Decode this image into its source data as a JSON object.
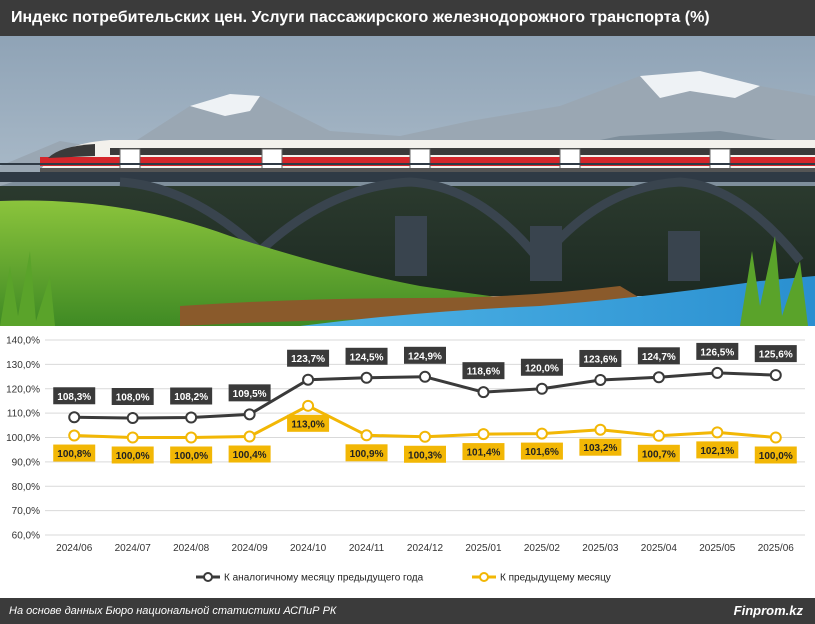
{
  "title": "Индекс потребительских цен. Услуги пассажирского железнодорожного транспорта (%)",
  "footer": {
    "source": "На основе данных Бюро национальной статистики АСПиР РК",
    "brand": "Finprom.kz"
  },
  "colors": {
    "header_bg": "#3b3b3b",
    "series_yoy": "#3a3a3a",
    "series_mom": "#f2b705",
    "grid": "#d9d9d9"
  },
  "chart_data": {
    "type": "line",
    "categories": [
      "2024/06",
      "2024/07",
      "2024/08",
      "2024/09",
      "2024/10",
      "2024/11",
      "2024/12",
      "2025/01",
      "2025/02",
      "2025/03",
      "2025/04",
      "2025/05",
      "2025/06"
    ],
    "ylim": [
      60,
      140
    ],
    "yticks": [
      "140,0%",
      "130,0%",
      "120,0%",
      "110,0%",
      "100,0%",
      "90,0%",
      "80,0%",
      "70,0%",
      "60,0%"
    ],
    "grid": true,
    "legend_position": "bottom",
    "series": [
      {
        "name": "К аналогичному месяцу предыдущего года",
        "values": [
          108.3,
          108.0,
          108.2,
          109.5,
          123.7,
          124.5,
          124.9,
          118.6,
          120.0,
          123.6,
          124.7,
          126.5,
          125.6
        ],
        "labels": [
          "108,3%",
          "108,0%",
          "108,2%",
          "109,5%",
          "123,7%",
          "124,5%",
          "124,9%",
          "118,6%",
          "120,0%",
          "123,6%",
          "124,7%",
          "126,5%",
          "125,6%"
        ]
      },
      {
        "name": "К предыдущему месяцу",
        "values": [
          100.8,
          100.0,
          100.0,
          100.4,
          113.0,
          100.9,
          100.3,
          101.4,
          101.6,
          103.2,
          100.7,
          102.1,
          100.0
        ],
        "labels": [
          "100,8%",
          "100,0%",
          "100,0%",
          "100,4%",
          "113,0%",
          "100,9%",
          "100,3%",
          "101,4%",
          "101,6%",
          "103,2%",
          "100,7%",
          "102,1%",
          "100,0%"
        ]
      }
    ]
  }
}
